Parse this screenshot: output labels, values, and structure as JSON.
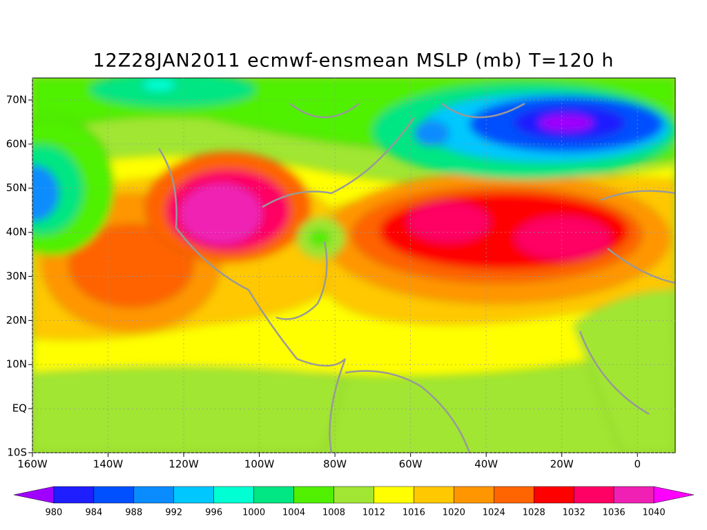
{
  "title": "12Z28JAN2011 ecmwf-ensmean MSLP (mb) T=120 h",
  "map": {
    "xlim": [
      -160,
      10
    ],
    "ylim": [
      -10,
      75
    ],
    "xticks": [
      {
        "value": -160,
        "label": "160W"
      },
      {
        "value": -140,
        "label": "140W"
      },
      {
        "value": -120,
        "label": "120W"
      },
      {
        "value": -100,
        "label": "100W"
      },
      {
        "value": -80,
        "label": "80W"
      },
      {
        "value": -60,
        "label": "60W"
      },
      {
        "value": -40,
        "label": "40W"
      },
      {
        "value": -20,
        "label": "20W"
      },
      0
    ],
    "yticks": [
      {
        "value": -10,
        "label": "10S"
      },
      {
        "value": 0,
        "label": "EQ"
      },
      {
        "value": 10,
        "label": "10N"
      },
      {
        "value": 20,
        "label": "20N"
      },
      {
        "value": 30,
        "label": "30N"
      },
      {
        "value": 40,
        "label": "40N"
      },
      {
        "value": 50,
        "label": "50N"
      },
      {
        "value": 60,
        "label": "60N"
      },
      {
        "value": 70,
        "label": "70N"
      }
    ]
  },
  "colorbar": {
    "levels": [
      980,
      984,
      988,
      992,
      996,
      1000,
      1004,
      1008,
      1012,
      1016,
      1020,
      1024,
      1028,
      1032,
      1036,
      1040
    ],
    "colors": [
      "#a000ff",
      "#1e1eff",
      "#0050ff",
      "#0a8cff",
      "#00c8ff",
      "#00ffd2",
      "#00e682",
      "#50f000",
      "#a0e632",
      "#ffff00",
      "#ffc800",
      "#ff9600",
      "#ff6400",
      "#ff0000",
      "#ff0064",
      "#f020b4",
      "#ff00ff"
    ]
  }
}
